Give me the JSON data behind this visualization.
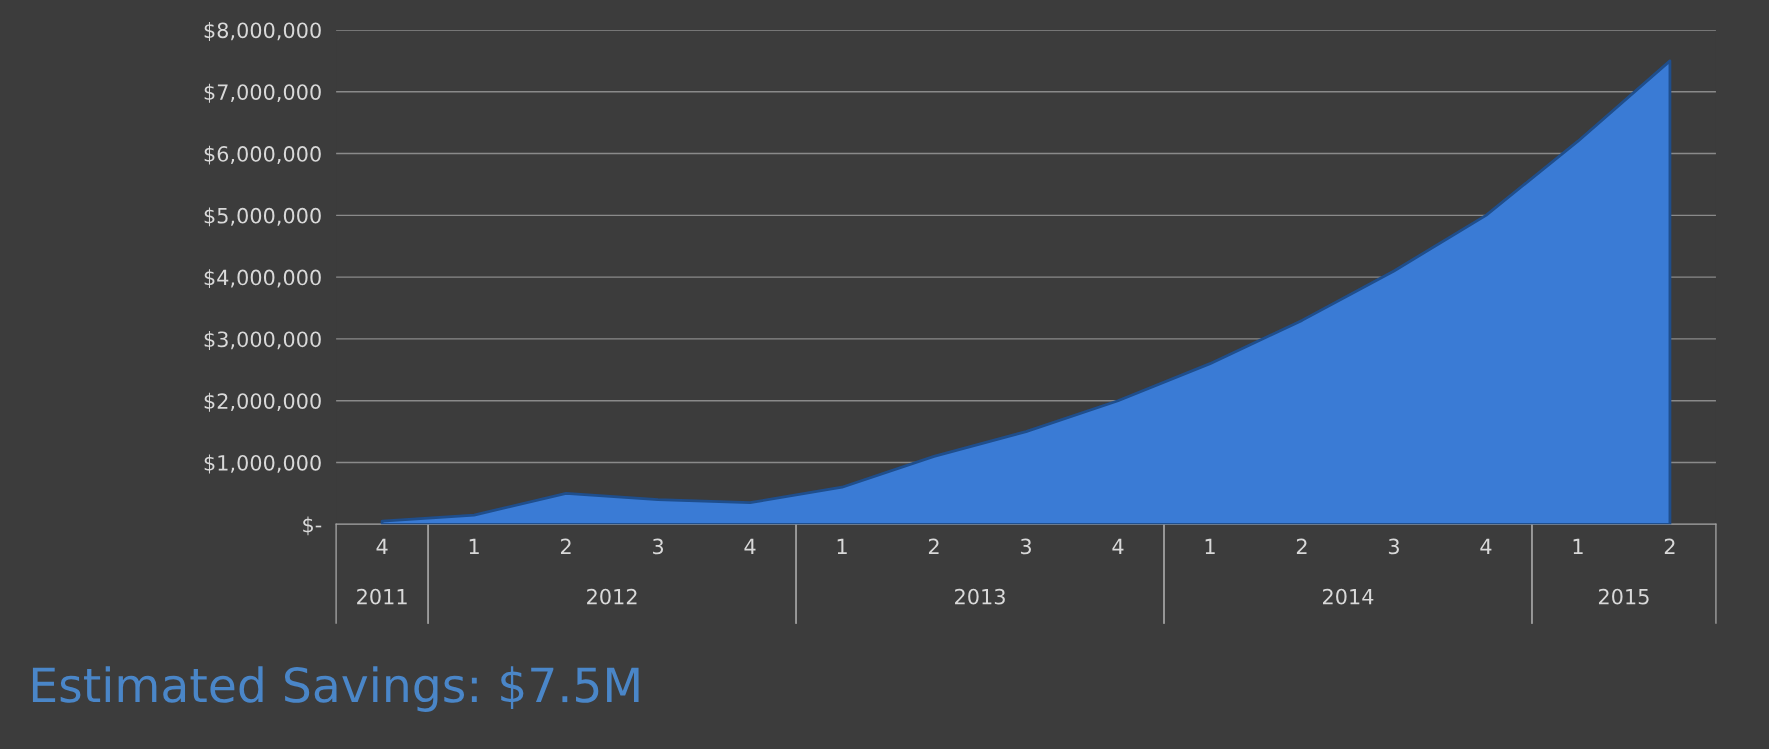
{
  "chart_data": {
    "type": "area",
    "title": "Estimated Savings: $7.5M",
    "categories": [
      "4",
      "1",
      "2",
      "3",
      "4",
      "1",
      "2",
      "3",
      "4",
      "1",
      "2",
      "3",
      "4",
      "1",
      "2"
    ],
    "series": [
      {
        "color": "#3a7bd5",
        "values": [
          50000,
          150000,
          500000,
          400000,
          350000,
          600000,
          1100000,
          1500000,
          2000000,
          2600000,
          3300000,
          4100000,
          5000000,
          6200000,
          7500000
        ]
      }
    ],
    "annotations": [
      "2011",
      "2012",
      "2013",
      "2014",
      "2015"
    ],
    "ylim": [
      0,
      8000000
    ],
    "yticks": [
      {
        "value": 0,
        "label": "$-"
      },
      {
        "value": 1000000,
        "label": "$1,000,000"
      },
      {
        "value": 2000000,
        "label": "$2,000,000"
      },
      {
        "value": 3000000,
        "label": "$3,000,000"
      },
      {
        "value": 4000000,
        "label": "$4,000,000"
      },
      {
        "value": 5000000,
        "label": "$5,000,000"
      },
      {
        "value": 6000000,
        "label": "$6,000,000"
      },
      {
        "value": 7000000,
        "label": "$7,000,000"
      },
      {
        "value": 8000000,
        "label": "$8,000,000"
      }
    ],
    "grid": "y"
  }
}
